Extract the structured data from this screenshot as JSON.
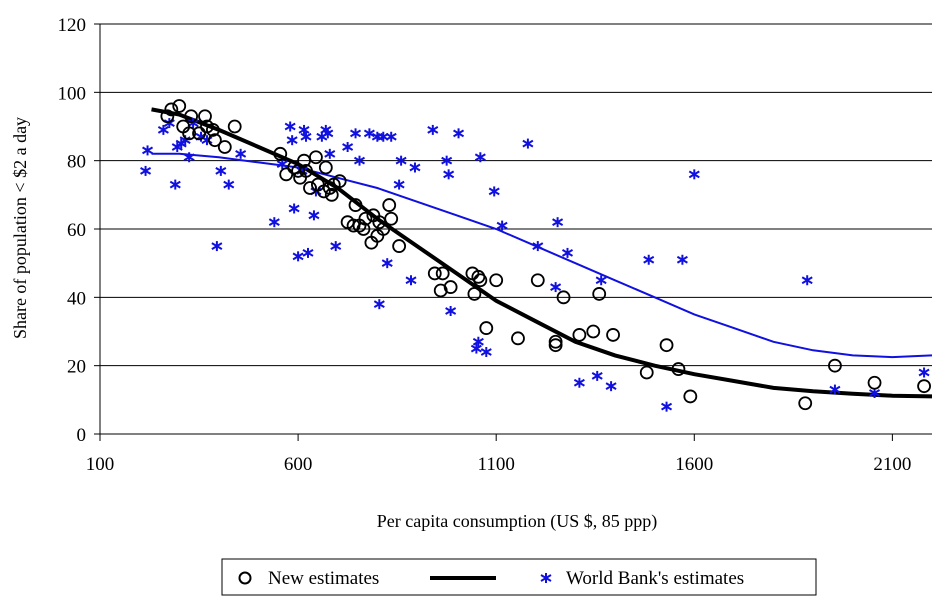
{
  "chart_data": {
    "type": "scatter",
    "title": "",
    "xlabel": "Per capita consumption (US $, 85 ppp)",
    "ylabel": "Share of population < $2 a day",
    "xlim": [
      100,
      2200
    ],
    "ylim": [
      0,
      120
    ],
    "x_ticks": [
      100,
      600,
      1100,
      1600,
      2100
    ],
    "y_ticks": [
      0,
      20,
      40,
      60,
      80,
      100,
      120
    ],
    "grid": "horizontal",
    "legend_position": "bottom-center",
    "colors": {
      "new": "#000000",
      "wb": "#1010e0"
    },
    "series": [
      {
        "name": "New estimates",
        "marker": "circle",
        "points": [
          [
            270,
            93
          ],
          [
            280,
            95
          ],
          [
            300,
            96
          ],
          [
            310,
            90
          ],
          [
            325,
            88
          ],
          [
            330,
            93
          ],
          [
            350,
            88
          ],
          [
            365,
            93
          ],
          [
            370,
            90
          ],
          [
            385,
            89
          ],
          [
            390,
            86
          ],
          [
            415,
            84
          ],
          [
            440,
            90
          ],
          [
            555,
            82
          ],
          [
            570,
            76
          ],
          [
            590,
            78
          ],
          [
            600,
            77
          ],
          [
            605,
            75
          ],
          [
            615,
            80
          ],
          [
            620,
            77
          ],
          [
            630,
            72
          ],
          [
            645,
            81
          ],
          [
            650,
            73
          ],
          [
            665,
            71
          ],
          [
            670,
            78
          ],
          [
            680,
            72
          ],
          [
            685,
            70
          ],
          [
            690,
            73
          ],
          [
            705,
            74
          ],
          [
            725,
            62
          ],
          [
            740,
            61
          ],
          [
            745,
            67
          ],
          [
            755,
            61
          ],
          [
            765,
            60
          ],
          [
            770,
            63
          ],
          [
            785,
            56
          ],
          [
            790,
            64
          ],
          [
            800,
            58
          ],
          [
            805,
            62
          ],
          [
            815,
            60
          ],
          [
            830,
            67
          ],
          [
            835,
            63
          ],
          [
            855,
            55
          ],
          [
            945,
            47
          ],
          [
            960,
            42
          ],
          [
            965,
            47
          ],
          [
            985,
            43
          ],
          [
            1040,
            47
          ],
          [
            1045,
            41
          ],
          [
            1055,
            46
          ],
          [
            1060,
            45
          ],
          [
            1075,
            31
          ],
          [
            1100,
            45
          ],
          [
            1155,
            28
          ],
          [
            1205,
            45
          ],
          [
            1250,
            27
          ],
          [
            1250,
            26
          ],
          [
            1270,
            40
          ],
          [
            1310,
            29
          ],
          [
            1345,
            30
          ],
          [
            1360,
            41
          ],
          [
            1395,
            29
          ],
          [
            1480,
            18
          ],
          [
            1530,
            26
          ],
          [
            1560,
            19
          ],
          [
            1590,
            11
          ],
          [
            1880,
            9
          ],
          [
            1955,
            20
          ],
          [
            2055,
            15
          ],
          [
            2180,
            14
          ]
        ],
        "fit_curve": [
          [
            230,
            95
          ],
          [
            300,
            93.5
          ],
          [
            400,
            89
          ],
          [
            500,
            84
          ],
          [
            600,
            79
          ],
          [
            700,
            72
          ],
          [
            800,
            63
          ],
          [
            900,
            55
          ],
          [
            1000,
            47
          ],
          [
            1100,
            39
          ],
          [
            1200,
            33
          ],
          [
            1300,
            27
          ],
          [
            1400,
            23
          ],
          [
            1500,
            20
          ],
          [
            1600,
            17.5
          ],
          [
            1700,
            15.5
          ],
          [
            1800,
            13.5
          ],
          [
            1900,
            12.5
          ],
          [
            2000,
            11.8
          ],
          [
            2100,
            11.2
          ],
          [
            2200,
            11
          ]
        ]
      },
      {
        "name": "World Bank's estimates",
        "marker": "star",
        "points": [
          [
            215,
            77
          ],
          [
            220,
            83
          ],
          [
            260,
            89
          ],
          [
            275,
            91
          ],
          [
            290,
            73
          ],
          [
            295,
            84
          ],
          [
            305,
            85
          ],
          [
            315,
            86
          ],
          [
            325,
            81
          ],
          [
            335,
            91
          ],
          [
            355,
            87
          ],
          [
            370,
            86
          ],
          [
            395,
            55
          ],
          [
            405,
            77
          ],
          [
            425,
            73
          ],
          [
            455,
            82
          ],
          [
            540,
            62
          ],
          [
            560,
            79
          ],
          [
            580,
            90
          ],
          [
            585,
            86
          ],
          [
            590,
            66
          ],
          [
            600,
            52
          ],
          [
            610,
            77
          ],
          [
            615,
            89
          ],
          [
            620,
            87
          ],
          [
            625,
            53
          ],
          [
            640,
            64
          ],
          [
            645,
            71
          ],
          [
            660,
            87
          ],
          [
            670,
            89
          ],
          [
            675,
            88
          ],
          [
            680,
            82
          ],
          [
            695,
            55
          ],
          [
            725,
            84
          ],
          [
            745,
            88
          ],
          [
            755,
            80
          ],
          [
            780,
            88
          ],
          [
            800,
            87
          ],
          [
            805,
            38
          ],
          [
            815,
            87
          ],
          [
            825,
            50
          ],
          [
            835,
            87
          ],
          [
            855,
            73
          ],
          [
            860,
            80
          ],
          [
            885,
            45
          ],
          [
            895,
            78
          ],
          [
            940,
            89
          ],
          [
            975,
            80
          ],
          [
            980,
            76
          ],
          [
            985,
            36
          ],
          [
            1005,
            88
          ],
          [
            1050,
            25
          ],
          [
            1055,
            27
          ],
          [
            1060,
            81
          ],
          [
            1075,
            24
          ],
          [
            1095,
            71
          ],
          [
            1115,
            61
          ],
          [
            1180,
            85
          ],
          [
            1205,
            55
          ],
          [
            1250,
            43
          ],
          [
            1255,
            62
          ],
          [
            1280,
            53
          ],
          [
            1310,
            15
          ],
          [
            1355,
            17
          ],
          [
            1365,
            45
          ],
          [
            1390,
            14
          ],
          [
            1485,
            51
          ],
          [
            1530,
            8
          ],
          [
            1570,
            51
          ],
          [
            1600,
            76
          ],
          [
            1885,
            45
          ],
          [
            1955,
            13
          ],
          [
            2055,
            12
          ],
          [
            2180,
            18
          ]
        ],
        "fit_curve": [
          [
            230,
            82
          ],
          [
            300,
            82
          ],
          [
            400,
            81
          ],
          [
            500,
            79.5
          ],
          [
            600,
            78
          ],
          [
            700,
            75
          ],
          [
            800,
            72
          ],
          [
            900,
            68
          ],
          [
            1000,
            64
          ],
          [
            1100,
            60
          ],
          [
            1200,
            55
          ],
          [
            1300,
            50
          ],
          [
            1400,
            45
          ],
          [
            1500,
            40
          ],
          [
            1600,
            35
          ],
          [
            1700,
            31
          ],
          [
            1800,
            27
          ],
          [
            1900,
            24.5
          ],
          [
            2000,
            23
          ],
          [
            2100,
            22.5
          ],
          [
            2200,
            23
          ]
        ]
      }
    ]
  }
}
